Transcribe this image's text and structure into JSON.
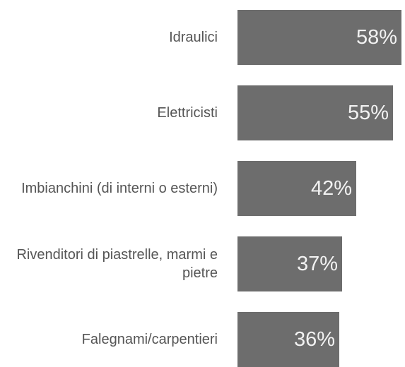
{
  "chart_data": {
    "type": "bar",
    "orientation": "horizontal",
    "categories": [
      "Idraulici",
      "Elettricisti",
      "Imbianchini (di interni o esterni)",
      "Rivenditori di piastrelle, marmi e pietre",
      "Falegnami/carpentieri"
    ],
    "values": [
      58,
      55,
      42,
      37,
      36
    ],
    "value_labels": [
      "58%",
      "55%",
      "42%",
      "37%",
      "36%"
    ],
    "color": "#6d6d6d"
  }
}
